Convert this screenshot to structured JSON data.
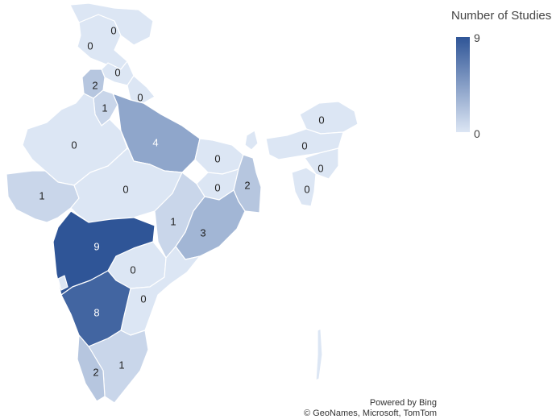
{
  "legend": {
    "title": "Number of Studies",
    "max_label": "9",
    "min_label": "0",
    "min_color": "#dce6f4",
    "max_color": "#2f5597"
  },
  "credits": {
    "line1": "Powered by Bing",
    "line2": "© GeoNames, Microsoft, TomTom"
  },
  "regions": [
    {
      "key": "jammu-kashmir",
      "value": 0,
      "label": "0"
    },
    {
      "key": "ladakh",
      "value": 0,
      "label": "0"
    },
    {
      "key": "himachal-pradesh",
      "value": 0,
      "label": "0"
    },
    {
      "key": "punjab",
      "value": 2,
      "label": "2"
    },
    {
      "key": "haryana",
      "value": 1,
      "label": "1"
    },
    {
      "key": "uttarakhand",
      "value": 0,
      "label": "0"
    },
    {
      "key": "rajasthan",
      "value": 0,
      "label": "0"
    },
    {
      "key": "uttar-pradesh",
      "value": 4,
      "label": "4"
    },
    {
      "key": "bihar",
      "value": 0,
      "label": "0"
    },
    {
      "key": "gujarat",
      "value": 1,
      "label": "1"
    },
    {
      "key": "madhya-pradesh",
      "value": 0,
      "label": "0"
    },
    {
      "key": "jharkhand",
      "value": 0,
      "label": "0"
    },
    {
      "key": "west-bengal",
      "value": 2,
      "label": "2"
    },
    {
      "key": "chhattisgarh",
      "value": 1,
      "label": "1"
    },
    {
      "key": "odisha",
      "value": 3,
      "label": "3"
    },
    {
      "key": "maharashtra",
      "value": 9,
      "label": "9"
    },
    {
      "key": "telangana",
      "value": 0,
      "label": "0"
    },
    {
      "key": "andhra-pradesh",
      "value": 0,
      "label": "0"
    },
    {
      "key": "karnataka",
      "value": 8,
      "label": "8"
    },
    {
      "key": "tamil-nadu",
      "value": 1,
      "label": "1"
    },
    {
      "key": "kerala",
      "value": 2,
      "label": "2"
    },
    {
      "key": "arunachal-pradesh",
      "value": 0,
      "label": "0"
    },
    {
      "key": "assam",
      "value": 0,
      "label": "0"
    },
    {
      "key": "meghalaya-nagaland",
      "value": 0,
      "label": "0"
    },
    {
      "key": "mizoram-tripura",
      "value": 0,
      "label": "0"
    },
    {
      "key": "sikkim",
      "value": 0,
      "label": ""
    },
    {
      "key": "goa",
      "value": 0,
      "label": ""
    },
    {
      "key": "andaman-nicobar",
      "value": 0,
      "label": ""
    }
  ]
}
